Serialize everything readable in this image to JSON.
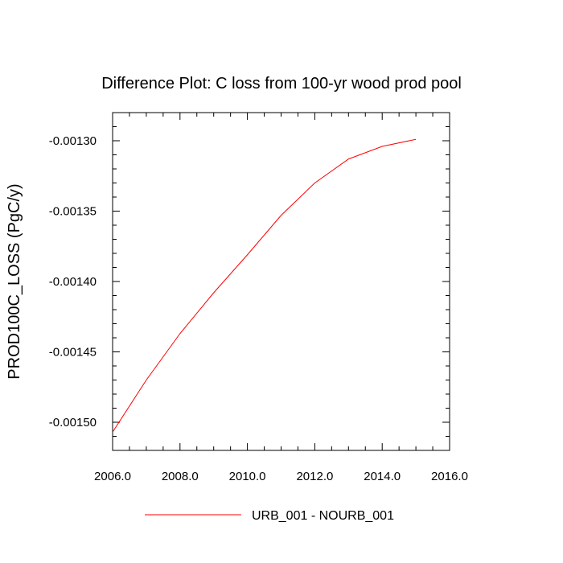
{
  "chart_data": {
    "type": "line",
    "title": "Difference Plot: C loss from 100-yr wood prod pool",
    "xlabel": "",
    "ylabel": "PROD100C_LOSS  (PgC/y)",
    "xlim": [
      2006.0,
      2016.0
    ],
    "ylim": [
      -0.00152,
      -0.00128
    ],
    "x_ticks": [
      2006.0,
      2008.0,
      2010.0,
      2012.0,
      2014.0,
      2016.0
    ],
    "x_tick_labels": [
      "2006.0",
      "2008.0",
      "2010.0",
      "2012.0",
      "2014.0",
      "2016.0"
    ],
    "y_ticks": [
      -0.0015,
      -0.00145,
      -0.0014,
      -0.00135,
      -0.0013
    ],
    "y_tick_labels": [
      "-0.00150",
      "-0.00145",
      "-0.00140",
      "-0.00135",
      "-0.00130"
    ],
    "grid": false,
    "legend_position": "bottom-center",
    "series": [
      {
        "name": "URB_001 - NOURB_001",
        "color": "#ff0000",
        "x": [
          2006,
          2007,
          2008,
          2009,
          2010,
          2011,
          2012,
          2013,
          2014,
          2015
        ],
        "y": [
          -0.001507,
          -0.00147,
          -0.001437,
          -0.001408,
          -0.001381,
          -0.001353,
          -0.00133,
          -0.001313,
          -0.001304,
          -0.001299
        ]
      }
    ]
  }
}
